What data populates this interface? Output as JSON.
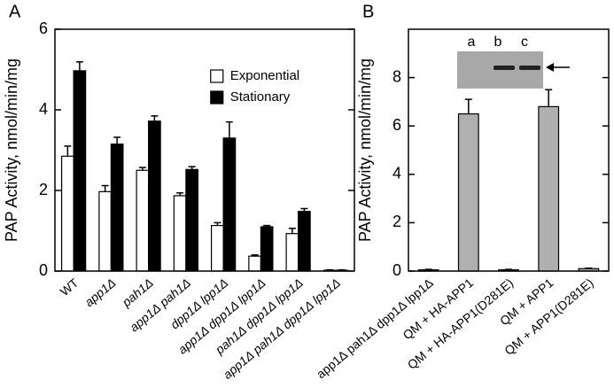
{
  "chart_data": [
    {
      "type": "bar",
      "panel": "A",
      "ylabel": "PAP Activity, nmol/min/mg",
      "categories": [
        "WT",
        "app1Δ",
        "pah1Δ",
        "app1Δ pah1Δ",
        "dpp1Δ lpp1Δ",
        "app1Δ dpp1Δ lpp1Δ",
        "pah1Δ dpp1Δ lpp1Δ",
        "app1Δ pah1Δ dpp1Δ lpp1Δ"
      ],
      "series": [
        {
          "name": "Exponential",
          "color": "#ffffff",
          "values": [
            2.85,
            1.97,
            2.5,
            1.87,
            1.13,
            0.37,
            0.93,
            0.02
          ],
          "errors": [
            0.25,
            0.15,
            0.07,
            0.07,
            0.07,
            0.03,
            0.13,
            0.01
          ]
        },
        {
          "name": "Stationary",
          "color": "#000000",
          "values": [
            4.97,
            3.15,
            3.72,
            2.52,
            3.3,
            1.1,
            1.48,
            0.02
          ],
          "errors": [
            0.22,
            0.17,
            0.13,
            0.07,
            0.4,
            0.03,
            0.07,
            0.01
          ]
        }
      ],
      "ylim": [
        0,
        6
      ],
      "yticks": [
        0,
        2,
        4,
        6
      ],
      "legend": "upper center"
    },
    {
      "type": "bar",
      "panel": "B",
      "ylabel": "PAP Activity, nmol/min/mg",
      "categories": [
        "app1Δ pah1Δ dpp1Δ lpp1Δ",
        "QM + HA-APP1",
        "QM + HA-APP1(D281E)",
        "QM + APP1",
        "QM + APP1(D281E)"
      ],
      "series": [
        {
          "color": "#b0b0b0",
          "values": [
            0.05,
            6.5,
            0.05,
            6.8,
            0.1
          ],
          "errors": [
            0.02,
            0.6,
            0.02,
            0.7,
            0.02
          ]
        }
      ],
      "ylim": [
        0,
        10
      ],
      "yticks": [
        0,
        2,
        4,
        6,
        8
      ],
      "inset_labels": [
        "a",
        "b",
        "c"
      ]
    }
  ]
}
